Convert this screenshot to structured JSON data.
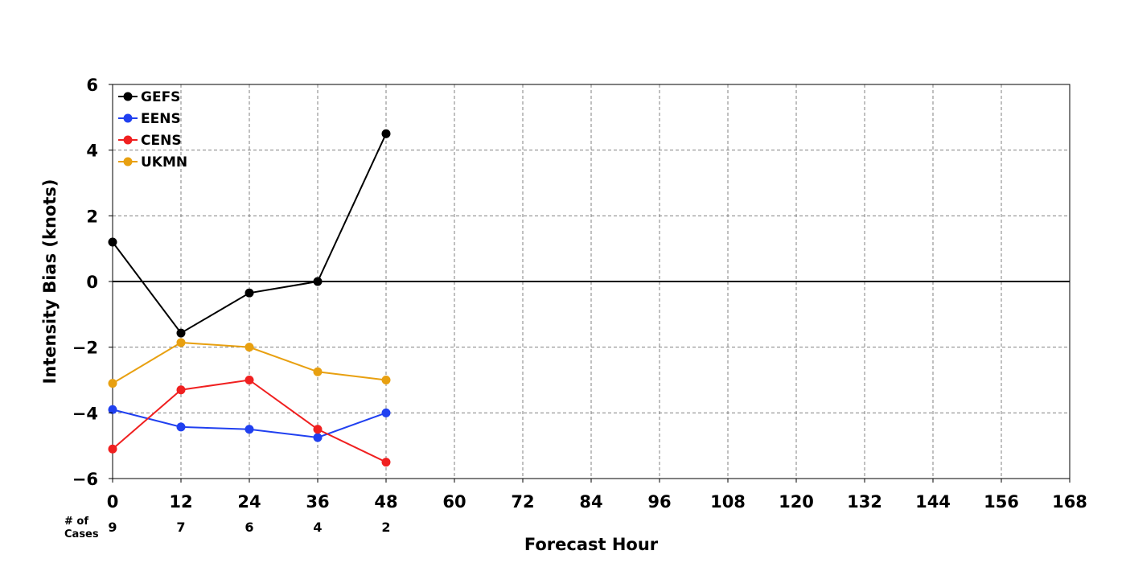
{
  "chart_data": {
    "type": "line",
    "xlabel": "Forecast Hour",
    "ylabel": "Intensity Bias (knots)",
    "xlim": [
      0,
      168
    ],
    "ylim": [
      -6,
      6
    ],
    "xticks": [
      0,
      12,
      24,
      36,
      48,
      60,
      72,
      84,
      96,
      108,
      120,
      132,
      144,
      156,
      168
    ],
    "yticks": [
      -6,
      -4,
      -2,
      0,
      2,
      4,
      6
    ],
    "yticklabels": [
      "−6",
      "−4",
      "−2",
      "0",
      "2",
      "4",
      "6"
    ],
    "grid": true,
    "legend_position": "top-left",
    "x": [
      0,
      12,
      24,
      36,
      48
    ],
    "series": [
      {
        "name": "GEFS",
        "color": "#000000",
        "values": [
          1.2,
          -1.57,
          -0.35,
          0.0,
          4.5
        ]
      },
      {
        "name": "EENS",
        "color": "#2040f0",
        "values": [
          -3.9,
          -4.43,
          -4.5,
          -4.75,
          -4.0
        ]
      },
      {
        "name": "CENS",
        "color": "#f02020",
        "values": [
          -5.1,
          -3.3,
          -3.0,
          -4.5,
          -5.5
        ]
      },
      {
        "name": "UKMN",
        "color": "#e8a010",
        "values": [
          -3.1,
          -1.86,
          -2.0,
          -2.75,
          -3.0
        ]
      }
    ],
    "cases_label": "# of\nCases",
    "cases_label_lines": [
      "# of",
      "Cases"
    ],
    "cases_x": [
      0,
      12,
      24,
      36,
      48
    ],
    "cases": [
      "9",
      "7",
      "6",
      "4",
      "2"
    ]
  }
}
